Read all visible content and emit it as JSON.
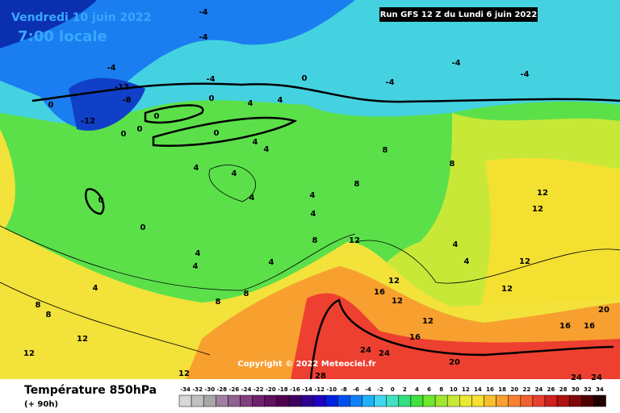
{
  "header": {
    "date": "Vendredi 10 juin 2022",
    "time": "7:00 locale",
    "run": "Run GFS 12 Z du Lundi 6 juin 2022",
    "copyright": "Copyright © 2022 Meteociel.fr"
  },
  "footer": {
    "title": "Température 850hPa",
    "lead": "(+ 90h)"
  },
  "scale": [
    -34,
    -32,
    -30,
    -28,
    -26,
    -24,
    -22,
    -20,
    -18,
    -16,
    -14,
    -12,
    -10,
    -8,
    -6,
    -4,
    -2,
    0,
    2,
    4,
    6,
    8,
    10,
    12,
    14,
    16,
    18,
    20,
    22,
    24,
    26,
    28,
    30,
    32,
    34
  ],
  "contour_labels": [
    -4,
    -4,
    -4,
    -4,
    -4,
    -4,
    -4,
    -12,
    -12,
    -8,
    0,
    0,
    0,
    0,
    0,
    0,
    0,
    0,
    0,
    4,
    4,
    4,
    4,
    4,
    4,
    4,
    4,
    4,
    4,
    4,
    4,
    4,
    4,
    4,
    8,
    8,
    8,
    8,
    8,
    8,
    8,
    8,
    12,
    12,
    12,
    12,
    12,
    12,
    12,
    12,
    12,
    12,
    12,
    16,
    16,
    16,
    16,
    20,
    20,
    24,
    24,
    24,
    24,
    28
  ]
}
